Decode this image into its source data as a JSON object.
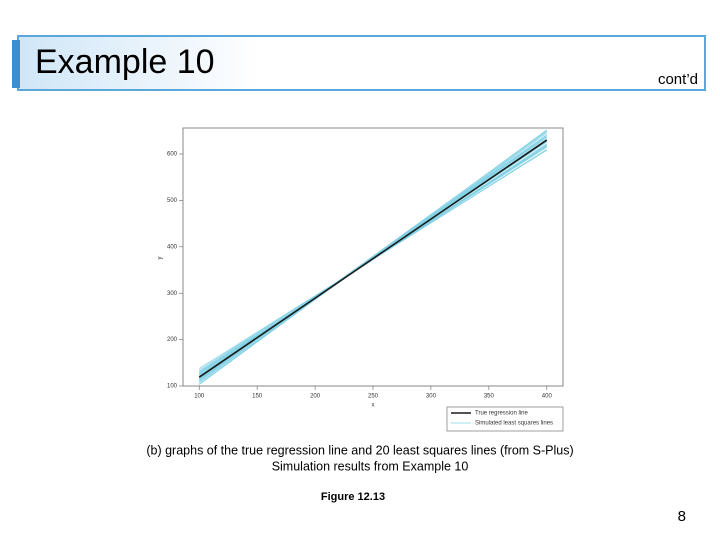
{
  "header": {
    "title": "Example 10",
    "note": "cont’d"
  },
  "chart_data": {
    "type": "line",
    "x_label": "x",
    "y_label": "y",
    "x": [
      100,
      400
    ],
    "xlim": [
      86,
      414
    ],
    "xticks": [
      100,
      150,
      200,
      250,
      300,
      350,
      400
    ],
    "ylim": [
      100,
      656
    ],
    "yticks": [
      100,
      200,
      300,
      400,
      500,
      600
    ],
    "legend": "bottom-right",
    "series": [
      {
        "name": "True regression line",
        "color": "#1a1a1a",
        "values": [
          119,
          630
        ]
      },
      {
        "name": "Simulated least squares lines",
        "color": "#7fd0e4",
        "values": [
          112,
          640
        ]
      },
      {
        "color": "#7fd0e4",
        "values": [
          125,
          622
        ]
      },
      {
        "color": "#7fd0e4",
        "values": [
          105,
          648
        ]
      },
      {
        "color": "#7fd0e4",
        "values": [
          130,
          615
        ]
      },
      {
        "color": "#7fd0e4",
        "values": [
          118,
          635
        ]
      },
      {
        "color": "#7fd0e4",
        "values": [
          122,
          628
        ]
      },
      {
        "color": "#7fd0e4",
        "values": [
          108,
          645
        ]
      },
      {
        "color": "#7fd0e4",
        "values": [
          135,
          610
        ]
      },
      {
        "color": "#7fd0e4",
        "values": [
          115,
          638
        ]
      },
      {
        "color": "#7fd0e4",
        "values": [
          127,
          620
        ]
      },
      {
        "color": "#7fd0e4",
        "values": [
          110,
          650
        ]
      },
      {
        "color": "#7fd0e4",
        "values": [
          120,
          632
        ]
      },
      {
        "color": "#7fd0e4",
        "values": [
          132,
          618
        ]
      },
      {
        "color": "#7fd0e4",
        "values": [
          103,
          652
        ]
      },
      {
        "color": "#7fd0e4",
        "values": [
          124,
          626
        ]
      },
      {
        "color": "#7fd0e4",
        "values": [
          116,
          641
        ]
      },
      {
        "color": "#7fd0e4",
        "values": [
          128,
          617
        ]
      },
      {
        "color": "#7fd0e4",
        "values": [
          113,
          636
        ]
      },
      {
        "color": "#7fd0e4",
        "values": [
          121,
          630
        ]
      },
      {
        "color": "#7fd0e4",
        "values": [
          138,
          608
        ]
      }
    ]
  },
  "caption": {
    "line1": "(b) graphs of the true regression line and 20 least squares lines (from S-Plus)",
    "line2": "Simulation results from Example 10",
    "figure": "Figure 12.13"
  },
  "page_number": "8"
}
